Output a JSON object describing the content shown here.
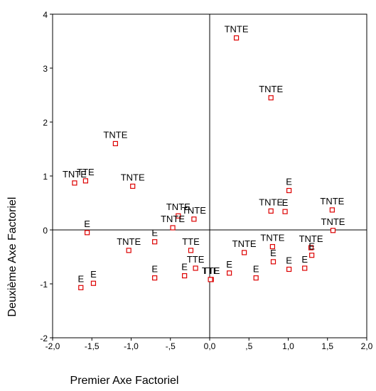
{
  "chart_data": {
    "type": "scatter",
    "xlabel": "Premier Axe Factoriel",
    "ylabel": "Deuxième Axe Factoriel",
    "xlim": [
      -2.0,
      2.0
    ],
    "ylim": [
      -2.0,
      4.0
    ],
    "x_ticks": [
      "-2,0",
      "-1,5",
      "-1,0",
      "-,5",
      "0,0",
      ",5",
      "1,0",
      "1,5",
      "2,0"
    ],
    "y_ticks": [
      "-2",
      "-1",
      "0",
      "1",
      "2",
      "3",
      "4"
    ],
    "grid": false,
    "reference_lines": [
      0,
      0
    ],
    "marker": "open-square",
    "marker_color": "#dd0000",
    "points": [
      {
        "x": 0.34,
        "y": 3.56,
        "label": "TNTE"
      },
      {
        "x": 0.78,
        "y": 2.45,
        "label": "TNTE"
      },
      {
        "x": -1.2,
        "y": 1.6,
        "label": "TNTE"
      },
      {
        "x": -1.72,
        "y": 0.87,
        "label": "TNTE"
      },
      {
        "x": -1.58,
        "y": 0.91,
        "label": "TTE"
      },
      {
        "x": -0.98,
        "y": 0.81,
        "label": "TNTE"
      },
      {
        "x": 1.01,
        "y": 0.73,
        "label": "E"
      },
      {
        "x": 0.78,
        "y": 0.35,
        "label": "TNTE"
      },
      {
        "x": 0.96,
        "y": 0.34,
        "label": "E"
      },
      {
        "x": 1.56,
        "y": 0.37,
        "label": "TNTE"
      },
      {
        "x": 1.57,
        "y": -0.01,
        "label": "TNTE"
      },
      {
        "x": -0.4,
        "y": 0.26,
        "label": "TNTE"
      },
      {
        "x": -0.2,
        "y": 0.2,
        "label": "TNTE"
      },
      {
        "x": -0.47,
        "y": 0.04,
        "label": "TNTE"
      },
      {
        "x": -1.56,
        "y": -0.05,
        "label": "E"
      },
      {
        "x": -1.03,
        "y": -0.38,
        "label": "TNTE"
      },
      {
        "x": -0.7,
        "y": -0.22,
        "label": "E"
      },
      {
        "x": -0.24,
        "y": -0.38,
        "label": "TTE"
      },
      {
        "x": 0.44,
        "y": -0.42,
        "label": "TNTE"
      },
      {
        "x": 0.8,
        "y": -0.31,
        "label": "TNTE"
      },
      {
        "x": 1.29,
        "y": -0.33,
        "label": "TNTE"
      },
      {
        "x": 1.3,
        "y": -0.47,
        "label": "E"
      },
      {
        "x": -0.18,
        "y": -0.71,
        "label": "TTE"
      },
      {
        "x": 0.81,
        "y": -0.59,
        "label": "E"
      },
      {
        "x": 1.01,
        "y": -0.73,
        "label": "E"
      },
      {
        "x": 1.21,
        "y": -0.71,
        "label": "E"
      },
      {
        "x": 0.25,
        "y": -0.8,
        "label": "E"
      },
      {
        "x": 0.59,
        "y": -0.89,
        "label": "E"
      },
      {
        "x": 0.02,
        "y": -0.92,
        "label": "TTE"
      },
      {
        "x": 0.01,
        "y": -0.92,
        "label": "TTE"
      },
      {
        "x": -0.32,
        "y": -0.85,
        "label": "E"
      },
      {
        "x": -0.7,
        "y": -0.89,
        "label": "E"
      },
      {
        "x": -1.64,
        "y": -1.07,
        "label": "E"
      },
      {
        "x": -1.48,
        "y": -0.99,
        "label": "E"
      }
    ]
  }
}
